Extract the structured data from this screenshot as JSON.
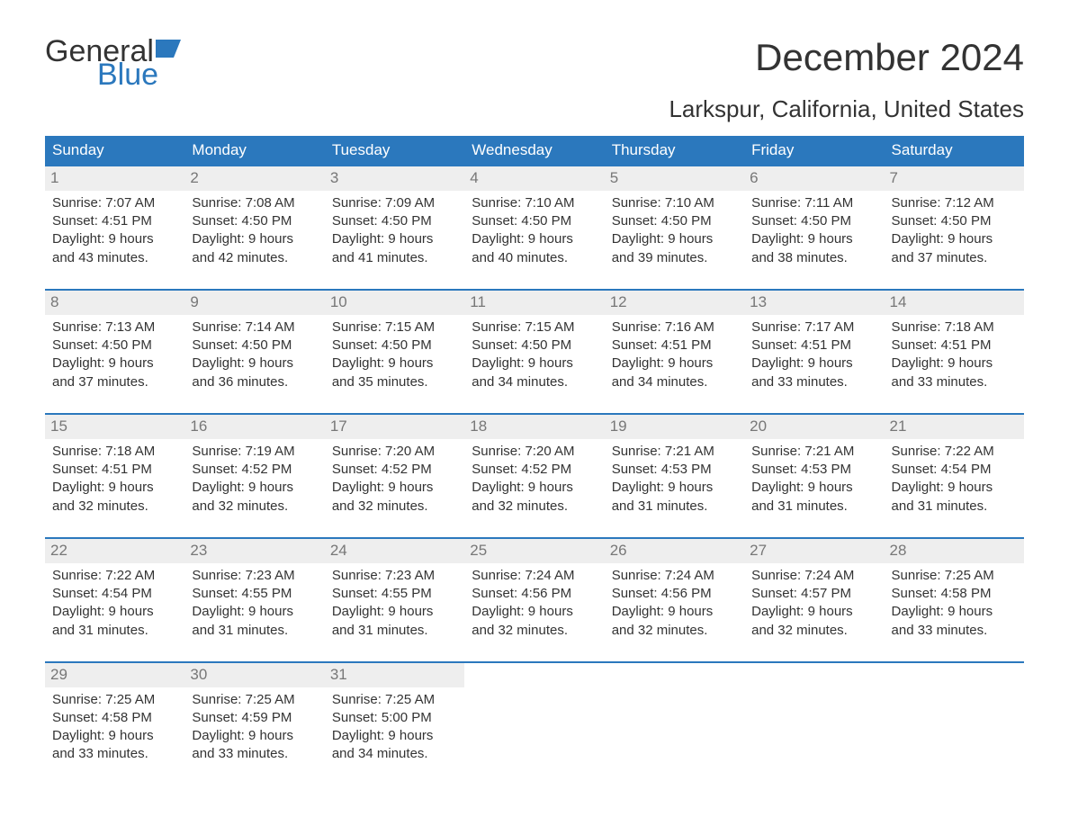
{
  "logo": {
    "word1": "General",
    "word2": "Blue",
    "flag_color": "#2b78bd"
  },
  "title": "December 2024",
  "location": "Larkspur, California, United States",
  "colors": {
    "header_bg": "#2b78bd",
    "header_text": "#ffffff",
    "daynum_bg": "#eeeeee",
    "daynum_text": "#777777",
    "body_text": "#333333",
    "week_border": "#2b78bd",
    "background": "#ffffff"
  },
  "weekdays": [
    "Sunday",
    "Monday",
    "Tuesday",
    "Wednesday",
    "Thursday",
    "Friday",
    "Saturday"
  ],
  "weeks": [
    [
      {
        "n": "1",
        "sunrise": "7:07 AM",
        "sunset": "4:51 PM",
        "daylight": "9 hours and 43 minutes."
      },
      {
        "n": "2",
        "sunrise": "7:08 AM",
        "sunset": "4:50 PM",
        "daylight": "9 hours and 42 minutes."
      },
      {
        "n": "3",
        "sunrise": "7:09 AM",
        "sunset": "4:50 PM",
        "daylight": "9 hours and 41 minutes."
      },
      {
        "n": "4",
        "sunrise": "7:10 AM",
        "sunset": "4:50 PM",
        "daylight": "9 hours and 40 minutes."
      },
      {
        "n": "5",
        "sunrise": "7:10 AM",
        "sunset": "4:50 PM",
        "daylight": "9 hours and 39 minutes."
      },
      {
        "n": "6",
        "sunrise": "7:11 AM",
        "sunset": "4:50 PM",
        "daylight": "9 hours and 38 minutes."
      },
      {
        "n": "7",
        "sunrise": "7:12 AM",
        "sunset": "4:50 PM",
        "daylight": "9 hours and 37 minutes."
      }
    ],
    [
      {
        "n": "8",
        "sunrise": "7:13 AM",
        "sunset": "4:50 PM",
        "daylight": "9 hours and 37 minutes."
      },
      {
        "n": "9",
        "sunrise": "7:14 AM",
        "sunset": "4:50 PM",
        "daylight": "9 hours and 36 minutes."
      },
      {
        "n": "10",
        "sunrise": "7:15 AM",
        "sunset": "4:50 PM",
        "daylight": "9 hours and 35 minutes."
      },
      {
        "n": "11",
        "sunrise": "7:15 AM",
        "sunset": "4:50 PM",
        "daylight": "9 hours and 34 minutes."
      },
      {
        "n": "12",
        "sunrise": "7:16 AM",
        "sunset": "4:51 PM",
        "daylight": "9 hours and 34 minutes."
      },
      {
        "n": "13",
        "sunrise": "7:17 AM",
        "sunset": "4:51 PM",
        "daylight": "9 hours and 33 minutes."
      },
      {
        "n": "14",
        "sunrise": "7:18 AM",
        "sunset": "4:51 PM",
        "daylight": "9 hours and 33 minutes."
      }
    ],
    [
      {
        "n": "15",
        "sunrise": "7:18 AM",
        "sunset": "4:51 PM",
        "daylight": "9 hours and 32 minutes."
      },
      {
        "n": "16",
        "sunrise": "7:19 AM",
        "sunset": "4:52 PM",
        "daylight": "9 hours and 32 minutes."
      },
      {
        "n": "17",
        "sunrise": "7:20 AM",
        "sunset": "4:52 PM",
        "daylight": "9 hours and 32 minutes."
      },
      {
        "n": "18",
        "sunrise": "7:20 AM",
        "sunset": "4:52 PM",
        "daylight": "9 hours and 32 minutes."
      },
      {
        "n": "19",
        "sunrise": "7:21 AM",
        "sunset": "4:53 PM",
        "daylight": "9 hours and 31 minutes."
      },
      {
        "n": "20",
        "sunrise": "7:21 AM",
        "sunset": "4:53 PM",
        "daylight": "9 hours and 31 minutes."
      },
      {
        "n": "21",
        "sunrise": "7:22 AM",
        "sunset": "4:54 PM",
        "daylight": "9 hours and 31 minutes."
      }
    ],
    [
      {
        "n": "22",
        "sunrise": "7:22 AM",
        "sunset": "4:54 PM",
        "daylight": "9 hours and 31 minutes."
      },
      {
        "n": "23",
        "sunrise": "7:23 AM",
        "sunset": "4:55 PM",
        "daylight": "9 hours and 31 minutes."
      },
      {
        "n": "24",
        "sunrise": "7:23 AM",
        "sunset": "4:55 PM",
        "daylight": "9 hours and 31 minutes."
      },
      {
        "n": "25",
        "sunrise": "7:24 AM",
        "sunset": "4:56 PM",
        "daylight": "9 hours and 32 minutes."
      },
      {
        "n": "26",
        "sunrise": "7:24 AM",
        "sunset": "4:56 PM",
        "daylight": "9 hours and 32 minutes."
      },
      {
        "n": "27",
        "sunrise": "7:24 AM",
        "sunset": "4:57 PM",
        "daylight": "9 hours and 32 minutes."
      },
      {
        "n": "28",
        "sunrise": "7:25 AM",
        "sunset": "4:58 PM",
        "daylight": "9 hours and 33 minutes."
      }
    ],
    [
      {
        "n": "29",
        "sunrise": "7:25 AM",
        "sunset": "4:58 PM",
        "daylight": "9 hours and 33 minutes."
      },
      {
        "n": "30",
        "sunrise": "7:25 AM",
        "sunset": "4:59 PM",
        "daylight": "9 hours and 33 minutes."
      },
      {
        "n": "31",
        "sunrise": "7:25 AM",
        "sunset": "5:00 PM",
        "daylight": "9 hours and 34 minutes."
      },
      null,
      null,
      null,
      null
    ]
  ],
  "labels": {
    "sunrise": "Sunrise: ",
    "sunset": "Sunset: ",
    "daylight": "Daylight: "
  }
}
